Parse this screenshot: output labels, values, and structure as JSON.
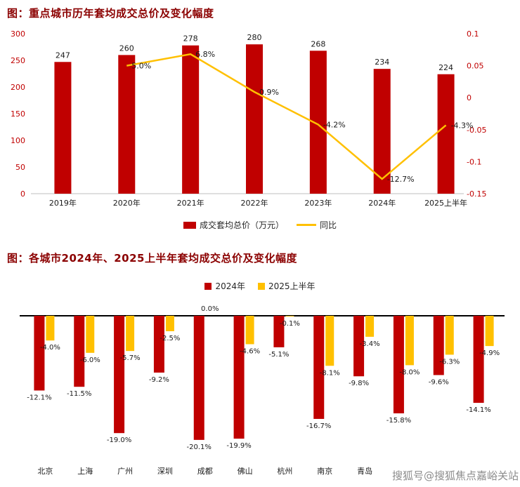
{
  "page": {
    "background": "#ffffff"
  },
  "colors": {
    "bar_red": "#c00000",
    "line_yellow": "#ffc000",
    "title_text": "#8b0000",
    "axis_tick_text": "#c00000",
    "value_label_text": "#1a1a1a",
    "zero_axis_line": "#000000",
    "baseline_gray": "#bfbfbf",
    "watermark_text": "#8c8c8c"
  },
  "watermark": {
    "text": "搜狐号@搜狐焦点嘉峪关站"
  },
  "chart_data": [
    {
      "type": "bar-line",
      "title": "图：重点城市历年套均成交总价及变化幅度",
      "categories": [
        "2019年",
        "2020年",
        "2021年",
        "2022年",
        "2023年",
        "2024年",
        "2025上半年"
      ],
      "bar_series": {
        "name": "成交套均总价（万元）",
        "color": "#c00000",
        "values": [
          247,
          260,
          278,
          280,
          268,
          234,
          224
        ]
      },
      "line_series": {
        "name": "同比",
        "color": "#ffc000",
        "values": [
          null,
          0.05,
          0.068,
          0.009,
          -0.042,
          -0.127,
          -0.043
        ],
        "labels": [
          null,
          "5.0%",
          "6.8%",
          "0.9%",
          "-4.2%",
          "-12.7%",
          "-4.3%"
        ]
      },
      "left_axis": {
        "min": 0,
        "max": 300,
        "ticks": [
          0,
          50,
          100,
          150,
          200,
          250,
          300
        ]
      },
      "right_axis": {
        "min": -0.15,
        "max": 0.1,
        "ticks": [
          0.1,
          0.05,
          0,
          -0.05,
          -0.1,
          -0.15
        ],
        "tick_labels": [
          "0.1",
          "0.05",
          "0",
          "-0.05",
          "-0.1",
          "-0.15"
        ]
      },
      "legend_position": "bottom",
      "grid": false
    },
    {
      "type": "grouped-bar",
      "title": "图：各城市2024年、2025上半年套均成交总价及变化幅度",
      "categories": [
        "北京",
        "上海",
        "广州",
        "深圳",
        "成都",
        "佛山",
        "杭州",
        "南京",
        "青岛",
        "",
        "",
        ""
      ],
      "series": [
        {
          "name": "2024年",
          "color": "#c00000",
          "values": [
            -12.1,
            -11.5,
            -19.0,
            -9.2,
            -20.1,
            -19.9,
            -5.1,
            -16.7,
            -9.8,
            -15.8,
            -9.6,
            -14.1
          ]
        },
        {
          "name": "2025上半年",
          "color": "#ffc000",
          "values": [
            -4.0,
            -6.0,
            -5.7,
            -2.5,
            0.0,
            -4.6,
            -0.1,
            -8.1,
            -3.4,
            -8.0,
            -6.3,
            -4.9
          ]
        }
      ],
      "value_suffix": "%",
      "ylim": [
        -22,
        0
      ],
      "legend_position": "top",
      "grid": false
    }
  ]
}
